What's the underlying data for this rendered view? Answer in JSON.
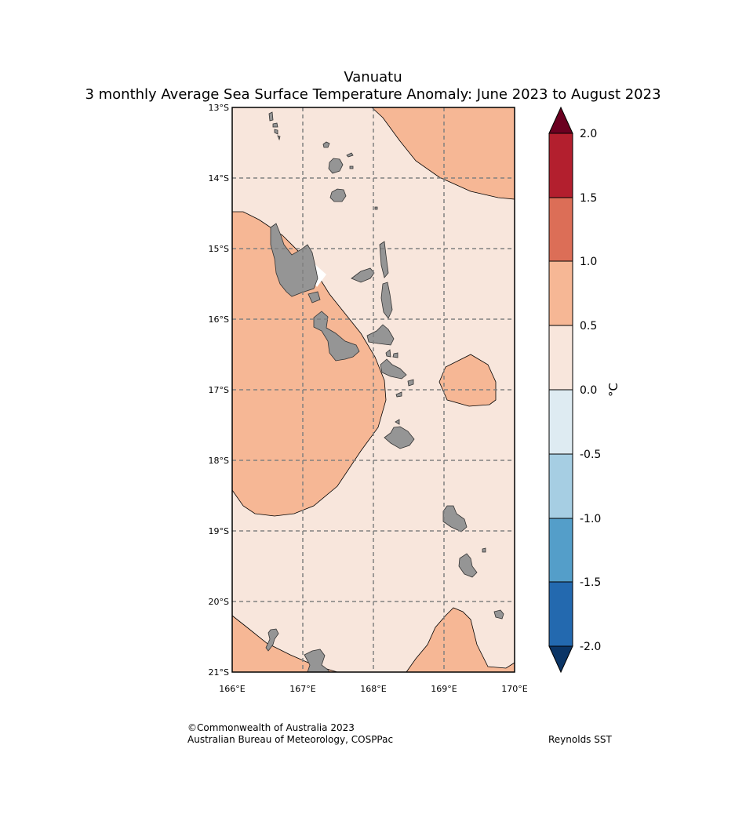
{
  "title": "Vanuatu",
  "subtitle": "3 monthly Average Sea Surface Temperature Anomaly: June 2023 to August 2023",
  "map": {
    "lat_labels": [
      "13°S",
      "14°S",
      "15°S",
      "16°S",
      "17°S",
      "18°S",
      "19°S",
      "20°S",
      "21°S"
    ],
    "lon_labels": [
      "166°E",
      "167°E",
      "168°E",
      "169°E",
      "170°E"
    ],
    "extent": {
      "lon_min": 166,
      "lon_max": 170,
      "lat_min": -21,
      "lat_max": -13
    },
    "gridlines": true,
    "colors": {
      "anomaly_0_to_0_5": "#f8e6dc",
      "anomaly_0_5_to_1_0": "#f6b795",
      "land": "#959595",
      "gridline": "#808080"
    }
  },
  "colorbar": {
    "label": "°C",
    "ticks": [
      "2.0",
      "1.5",
      "1.0",
      "0.5",
      "0.0",
      "-0.5",
      "-1.0",
      "-1.5",
      "-2.0"
    ],
    "bins": [
      {
        "range": "1.5 to 2.0",
        "color": "#b31f2e"
      },
      {
        "range": "1.0 to 1.5",
        "color": "#dc6e57"
      },
      {
        "range": "0.5 to 1.0",
        "color": "#f6b795"
      },
      {
        "range": "0.0 to 0.5",
        "color": "#f8e6dc"
      },
      {
        "range": "-0.5 to 0.0",
        "color": "#deebf2"
      },
      {
        "range": "-1.0 to -0.5",
        "color": "#a6cee3"
      },
      {
        "range": "-1.5 to -1.0",
        "color": "#549ec9"
      },
      {
        "range": "-2.0 to -1.5",
        "color": "#2369af"
      }
    ],
    "extend_max_color": "#6b0020",
    "extend_min_color": "#0b3566"
  },
  "footer": {
    "copyright": "©Commonwealth of Australia 2023",
    "agency": "Australian Bureau of Meteorology, COSPPac",
    "source": "Reynolds SST"
  }
}
